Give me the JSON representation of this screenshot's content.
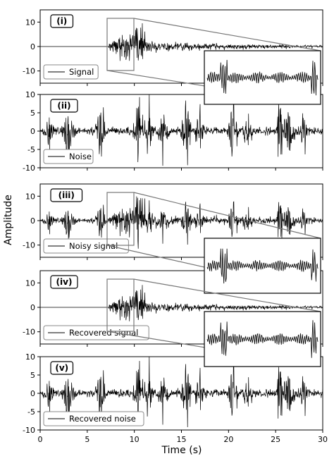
{
  "figure": {
    "ylabel": "Amplitude",
    "xlabel": "Time (s)"
  },
  "chart_data": [
    {
      "type": "line",
      "panel_label": "(i)",
      "legend": "Signal",
      "xlim": [
        0,
        30
      ],
      "ylim": [
        -15,
        15
      ],
      "yticks": [
        -10,
        0,
        10
      ],
      "xticks": [
        0,
        5,
        10,
        15,
        20,
        25,
        30
      ],
      "description_values": {
        "onset_s": 7.5,
        "peak_s": 10.5,
        "peak_amplitude": 12,
        "decay_end_s": 30
      },
      "inset": {
        "x_range": [
          7.2,
          10.0
        ],
        "y_range": [
          -15,
          12
        ]
      }
    },
    {
      "type": "line",
      "panel_label": "(ii)",
      "legend": "Noise",
      "xlim": [
        0,
        30
      ],
      "ylim": [
        -10,
        10
      ],
      "yticks": [
        -10,
        -5,
        0,
        5,
        10
      ],
      "xticks": [
        0,
        5,
        10,
        15,
        20,
        25,
        30
      ],
      "description_values": {
        "burst_times_s": [
          3,
          6.5,
          10.5,
          11.5,
          15.5,
          20.5,
          25.5,
          26.5
        ],
        "max_amplitude": 10
      }
    },
    {
      "type": "line",
      "panel_label": "(iii)",
      "legend": "Noisy signal",
      "xlim": [
        0,
        30
      ],
      "ylim": [
        -15,
        15
      ],
      "yticks": [
        -10,
        0,
        10
      ],
      "xticks": [
        0,
        5,
        10,
        15,
        20,
        25,
        30
      ],
      "inset": {
        "x_range": [
          7.2,
          10.0
        ],
        "y_range": [
          -15,
          12
        ]
      }
    },
    {
      "type": "line",
      "panel_label": "(iv)",
      "legend": "Recovered signal",
      "xlim": [
        0,
        30
      ],
      "ylim": [
        -15,
        15
      ],
      "yticks": [
        -10,
        0,
        10
      ],
      "xticks": [
        0,
        5,
        10,
        15,
        20,
        25,
        30
      ],
      "inset": {
        "x_range": [
          7.2,
          10.0
        ],
        "y_range": [
          -15,
          12
        ]
      }
    },
    {
      "type": "line",
      "panel_label": "(v)",
      "legend": "Recovered noise",
      "xlim": [
        0,
        30
      ],
      "ylim": [
        -10,
        10
      ],
      "yticks": [
        -10,
        -5,
        0,
        5,
        10
      ],
      "xticks": [
        0,
        5,
        10,
        15,
        20,
        25,
        30
      ],
      "xtick_labels": [
        "0",
        "5",
        "10",
        "15",
        "20",
        "25",
        "30"
      ]
    }
  ]
}
